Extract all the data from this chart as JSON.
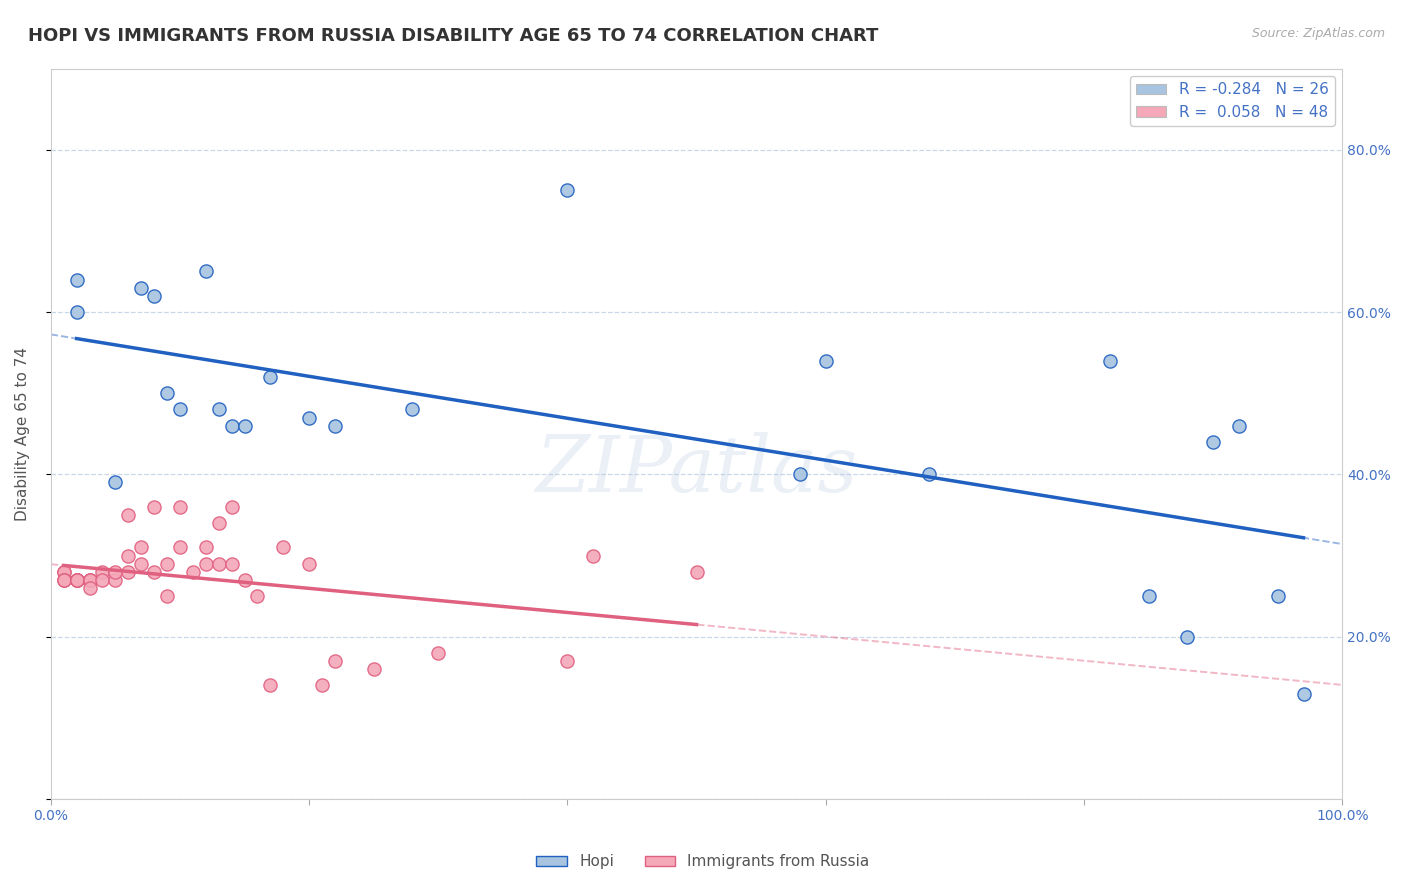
{
  "title": "HOPI VS IMMIGRANTS FROM RUSSIA DISABILITY AGE 65 TO 74 CORRELATION CHART",
  "source_text": "Source: ZipAtlas.com",
  "ylabel": "Disability Age 65 to 74",
  "watermark": "ZIPatlas",
  "hopi_R": -0.284,
  "hopi_N": 26,
  "russia_R": 0.058,
  "russia_N": 48,
  "hopi_color": "#a8c4e0",
  "russia_color": "#f4a8b8",
  "hopi_line_color": "#2060c0",
  "russia_line_color": "#e06080",
  "background_color": "#ffffff",
  "grid_color": "#c8d8e8",
  "xlim": [
    0.0,
    1.0
  ],
  "ylim": [
    0.0,
    0.9
  ],
  "hopi_x": [
    0.05,
    0.07,
    0.08,
    0.09,
    0.1,
    0.12,
    0.13,
    0.14,
    0.15,
    0.17,
    0.2,
    0.22,
    0.28,
    0.58,
    0.6,
    0.68,
    0.82,
    0.85,
    0.88,
    0.9,
    0.92,
    0.95,
    0.97,
    0.4,
    0.02,
    0.02
  ],
  "hopi_y": [
    0.39,
    0.63,
    0.62,
    0.5,
    0.48,
    0.65,
    0.48,
    0.46,
    0.46,
    0.52,
    0.47,
    0.46,
    0.48,
    0.4,
    0.54,
    0.4,
    0.54,
    0.25,
    0.2,
    0.44,
    0.46,
    0.25,
    0.13,
    0.75,
    0.64,
    0.6
  ],
  "russia_x": [
    0.01,
    0.01,
    0.01,
    0.01,
    0.01,
    0.02,
    0.02,
    0.02,
    0.02,
    0.02,
    0.03,
    0.03,
    0.03,
    0.03,
    0.04,
    0.04,
    0.05,
    0.05,
    0.06,
    0.06,
    0.06,
    0.07,
    0.07,
    0.08,
    0.08,
    0.09,
    0.09,
    0.1,
    0.1,
    0.11,
    0.12,
    0.12,
    0.13,
    0.13,
    0.14,
    0.14,
    0.15,
    0.16,
    0.17,
    0.18,
    0.2,
    0.21,
    0.22,
    0.25,
    0.3,
    0.4,
    0.42,
    0.5
  ],
  "russia_y": [
    0.28,
    0.28,
    0.27,
    0.27,
    0.27,
    0.27,
    0.27,
    0.27,
    0.27,
    0.27,
    0.27,
    0.27,
    0.27,
    0.26,
    0.28,
    0.27,
    0.27,
    0.28,
    0.3,
    0.28,
    0.35,
    0.29,
    0.31,
    0.28,
    0.36,
    0.25,
    0.29,
    0.31,
    0.36,
    0.28,
    0.29,
    0.31,
    0.29,
    0.34,
    0.29,
    0.36,
    0.27,
    0.25,
    0.14,
    0.31,
    0.29,
    0.14,
    0.17,
    0.16,
    0.18,
    0.17,
    0.3,
    0.28
  ],
  "legend_label_hopi": "Hopi",
  "legend_label_russia": "Immigrants from Russia",
  "title_fontsize": 13,
  "label_fontsize": 11,
  "tick_fontsize": 10,
  "legend_fontsize": 11,
  "y_ticks": [
    0.0,
    0.2,
    0.4,
    0.6,
    0.8
  ],
  "y_tick_labels_right": [
    "",
    "20.0%",
    "40.0%",
    "60.0%",
    "80.0%"
  ],
  "x_ticks": [
    0.0,
    0.2,
    0.4,
    0.6,
    0.8,
    1.0
  ],
  "x_tick_labels": [
    "0.0%",
    "",
    "",
    "",
    "",
    "100.0%"
  ]
}
